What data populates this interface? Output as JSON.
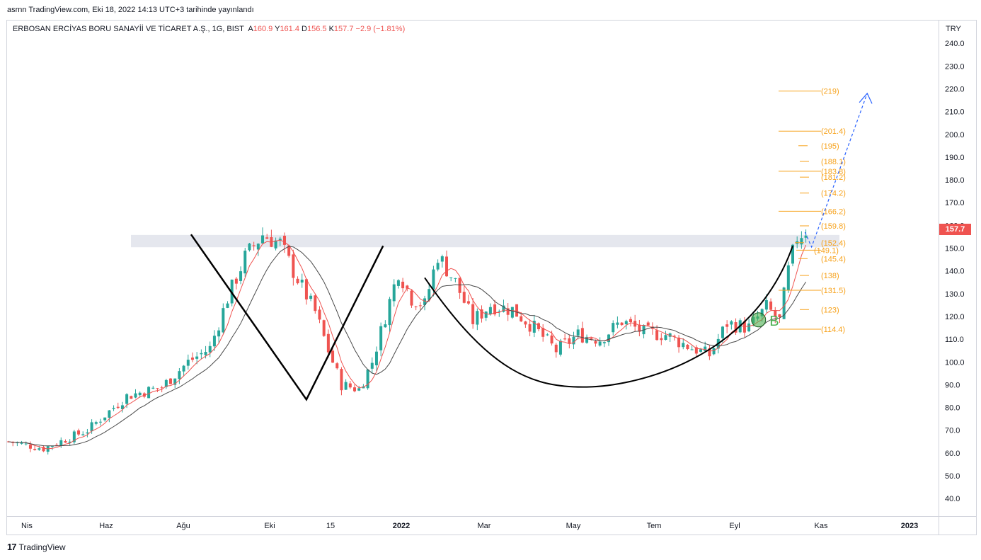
{
  "header": {
    "publish_line": "asrnn TradingView.com, Eki 18, 2022 14:13 UTC+3 tarihinde yayınlandı"
  },
  "legend": {
    "symbol": "ERBOSAN ERCİYAS BORU SANAYİİ VE TİCARET A.Ş., 1G, BIST",
    "o_label": "A",
    "o_value": "160.9",
    "h_label": "Y",
    "h_value": "161.4",
    "l_label": "D",
    "l_value": "156.5",
    "c_label": "K",
    "c_value": "157.7",
    "change": "−2.9 (−1.81%)"
  },
  "price_scale": {
    "currency": "TRY",
    "last_price": "157.7"
  },
  "brand": {
    "logo": "17",
    "name": "TradingView"
  },
  "colors": {
    "up": "#26a69a",
    "down": "#ef5350",
    "fib": "#f7a21b",
    "ma_fast": "#ef5350",
    "ma_slow": "#4a4a4a",
    "zone": "#e5e7ee",
    "projection": "#2962ff",
    "pattern": "#000000",
    "marker": "#4caf50"
  },
  "chart_data": {
    "type": "candlestick",
    "y_unit": "TRY",
    "ylim": [
      32,
      250
    ],
    "y_ticks": [
      "240.0",
      "230.0",
      "220.0",
      "210.0",
      "200.0",
      "190.0",
      "180.0",
      "170.0",
      "160.0",
      "150.0",
      "140.0",
      "130.0",
      "120.0",
      "110.0",
      "100.0",
      "90.0",
      "80.0",
      "70.0",
      "60.0",
      "50.0",
      "40.0"
    ],
    "x_labels": [
      "Nis",
      "Haz",
      "Ağu",
      "Eki",
      "15",
      "2022",
      "Mar",
      "May",
      "Tem",
      "Eyl",
      "Kas",
      "2023"
    ],
    "price_path": [
      [
        0,
        65
      ],
      [
        8,
        62
      ],
      [
        18,
        70
      ],
      [
        27,
        85
      ],
      [
        35,
        89
      ],
      [
        41,
        100
      ],
      [
        46,
        106
      ],
      [
        50,
        128
      ],
      [
        54,
        146
      ],
      [
        58,
        156
      ],
      [
        62,
        152
      ],
      [
        65,
        140
      ],
      [
        70,
        122
      ],
      [
        73,
        105
      ],
      [
        76,
        90
      ],
      [
        80,
        88
      ],
      [
        83,
        100
      ],
      [
        86,
        120
      ],
      [
        89,
        140
      ],
      [
        92,
        128
      ],
      [
        95,
        125
      ],
      [
        98,
        147
      ],
      [
        102,
        135
      ],
      [
        106,
        118
      ],
      [
        110,
        125
      ],
      [
        115,
        123
      ],
      [
        120,
        115
      ],
      [
        125,
        105
      ],
      [
        130,
        112
      ],
      [
        135,
        110
      ],
      [
        140,
        118
      ],
      [
        145,
        113
      ],
      [
        150,
        112
      ],
      [
        155,
        107
      ],
      [
        160,
        103
      ],
      [
        164,
        117
      ],
      [
        169,
        115
      ],
      [
        173,
        124
      ],
      [
        176,
        118
      ],
      [
        178,
        140
      ],
      [
        180,
        155
      ],
      [
        182,
        158
      ]
    ],
    "resistance_zone": [
      150.4,
      155.8
    ],
    "pattern": {
      "v_leg": [
        150,
        103,
        148
      ],
      "v_low": 83.5,
      "v_high": 156,
      "second_peak": 151,
      "cup_low": 89
    },
    "fib_levels": [
      "(219)",
      "(201.4)",
      "(195)",
      "(188.1)",
      "(183.8)",
      "(181.2)",
      "(174.2)",
      "(166.2)",
      "(159.8)",
      "(152.4)",
      "(149.1)",
      "(145.4)",
      "(138)",
      "(131.5)",
      "(123)",
      "(114.4)"
    ],
    "fib_values": [
      219,
      201.4,
      195,
      188.1,
      183.8,
      181.2,
      174.2,
      166.2,
      159.8,
      152.4,
      149.1,
      145.4,
      138,
      131.5,
      123,
      114.4
    ],
    "breakout_label": "B",
    "breakout_value": 118.5
  }
}
